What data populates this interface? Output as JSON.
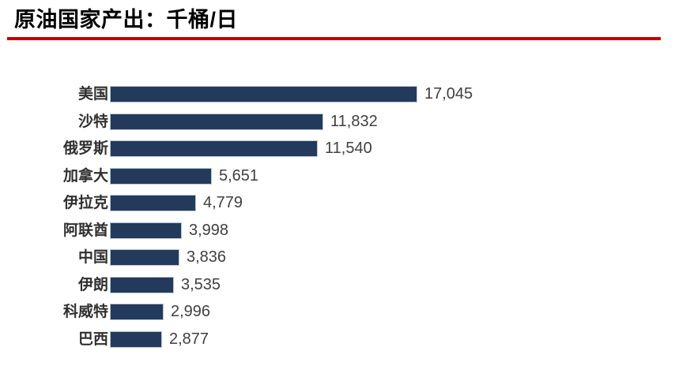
{
  "header": {
    "title": "原油国家产出：千桶/日"
  },
  "colors": {
    "bar": "#243A5C",
    "bar_border": "#B9C3D3",
    "divider_red": "#C00000",
    "title_text": "#000000",
    "label_text": "#303030",
    "value_text": "#404040"
  },
  "chart_data": {
    "type": "bar",
    "orientation": "horizontal",
    "title": "原油国家产出：千桶/日",
    "unit": "千桶/日",
    "xlim": [
      0,
      18000
    ],
    "grid": false,
    "legend": "none",
    "value_labels_shown": true,
    "categories": [
      "美国",
      "沙特",
      "俄罗斯",
      "加拿大",
      "伊拉克",
      "阿联酋",
      "中国",
      "伊朗",
      "科威特",
      "巴西"
    ],
    "values": [
      17045,
      11832,
      11540,
      5651,
      4779,
      3998,
      3836,
      3535,
      2996,
      2877
    ],
    "value_labels": [
      "17,045",
      "11,832",
      "11,540",
      "5,651",
      "4,779",
      "3,998",
      "3,836",
      "3,535",
      "2,996",
      "2,877"
    ]
  }
}
